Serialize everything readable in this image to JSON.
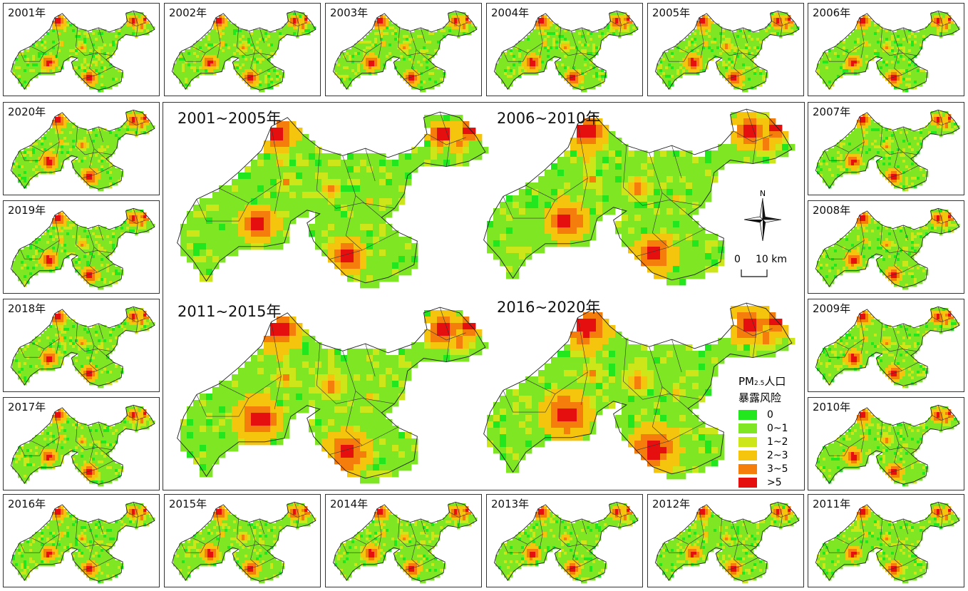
{
  "year_suffix": "年",
  "small_panels": [
    {
      "label": "2001年"
    },
    {
      "label": "2002年"
    },
    {
      "label": "2003年"
    },
    {
      "label": "2004年"
    },
    {
      "label": "2005年"
    },
    {
      "label": "2006年"
    },
    {
      "label": "2007年"
    },
    {
      "label": "2008年"
    },
    {
      "label": "2009年"
    },
    {
      "label": "2010年"
    },
    {
      "label": "2011年"
    },
    {
      "label": "2012年"
    },
    {
      "label": "2013年"
    },
    {
      "label": "2014年"
    },
    {
      "label": "2015年"
    },
    {
      "label": "2016年"
    },
    {
      "label": "2017年"
    },
    {
      "label": "2018年"
    },
    {
      "label": "2019年"
    },
    {
      "label": "2020年"
    }
  ],
  "period_panels": [
    {
      "label": "2001~2005年"
    },
    {
      "label": "2006~2010年"
    },
    {
      "label": "2011~2015年"
    },
    {
      "label": "2016~2020年"
    }
  ],
  "compass": {
    "north_label": "N"
  },
  "scale_bar": {
    "start": "0",
    "end": "10",
    "unit": "km"
  },
  "legend": {
    "title_main": "PM",
    "title_sub": "2.5",
    "title_rest": "人口",
    "title_line2": "暴露风险",
    "classes": [
      {
        "label": "0",
        "color": "#22e61e"
      },
      {
        "label": "0~1",
        "color": "#7ee622"
      },
      {
        "label": "1~2",
        "color": "#cde619"
      },
      {
        "label": "2~3",
        "color": "#f5c40c"
      },
      {
        "label": "3~5",
        "color": "#f57d0c"
      },
      {
        "label": ">5",
        "color": "#e60f0f"
      }
    ]
  }
}
